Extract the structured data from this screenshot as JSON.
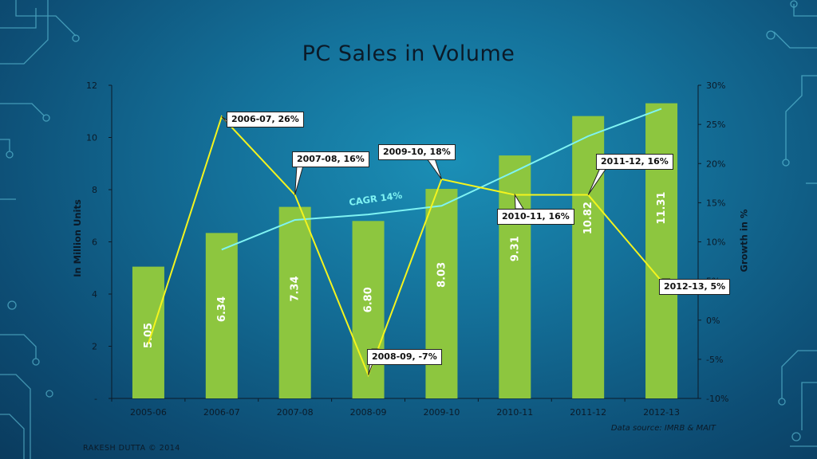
{
  "slide": {
    "title": "PC Sales in Volume",
    "data_source": "Data source: IMRB & MAIT",
    "author": "RAKESH DUTTA © 2014"
  },
  "chart_data": {
    "type": "bar",
    "title": "PC Sales in Volume",
    "categories": [
      "2005-06",
      "2006-07",
      "2007-08",
      "2008-09",
      "2009-10",
      "2010-11",
      "2011-12",
      "2012-13"
    ],
    "ylabel": "In Million Units",
    "y2label": "Growth in %",
    "ylim": [
      0,
      12
    ],
    "y_ticks": [
      "-",
      "2",
      "4",
      "6",
      "8",
      "10",
      "12"
    ],
    "y2lim": [
      -10,
      30
    ],
    "y2_ticks": [
      "-10%",
      "-5%",
      "0%",
      "5%",
      "10%",
      "15%",
      "20%",
      "25%",
      "30%"
    ],
    "grid": false,
    "series": [
      {
        "name": "PC Sales",
        "kind": "bar",
        "color": "#8dc63f",
        "values": [
          5.05,
          6.34,
          7.34,
          6.8,
          8.03,
          9.31,
          10.82,
          11.31
        ],
        "labels": [
          "5.05",
          "6.34",
          "7.34",
          "6.80",
          "8.03",
          "9.31",
          "10.82",
          "11.31"
        ]
      },
      {
        "name": "Growth",
        "kind": "line",
        "axis": "secondary",
        "color": "#f4f41e",
        "values": [
          -3,
          26,
          16,
          -7,
          18,
          16,
          16,
          5
        ],
        "callouts": [
          {
            "index": 1,
            "text": "2006-07, 26%"
          },
          {
            "index": 2,
            "text": "2007-08, 16%"
          },
          {
            "index": 3,
            "text": "2008-09, -7%"
          },
          {
            "index": 4,
            "text": "2009-10, 18%"
          },
          {
            "index": 5,
            "text": "2010-11, 16%"
          },
          {
            "index": 6,
            "text": "2011-12, 16%"
          },
          {
            "index": 7,
            "text": "2012-13, 5%"
          }
        ]
      },
      {
        "name": "CAGR",
        "kind": "line",
        "color": "#7ff3f3",
        "values": [
          null,
          9,
          12.8,
          13.5,
          14.6,
          19,
          23.5,
          27
        ],
        "label": "CAGR 14%"
      }
    ]
  }
}
